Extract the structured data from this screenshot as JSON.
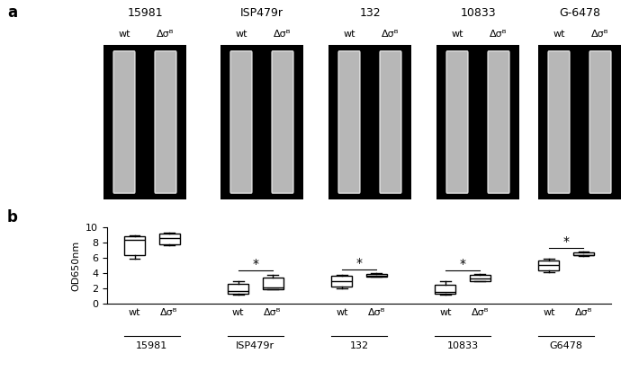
{
  "panel_a": {
    "label": "a",
    "images": [
      {
        "strain": "15981",
        "labels": [
          "wt",
          "Δσᴮ"
        ]
      },
      {
        "strain": "ISP479r",
        "labels": [
          "wt",
          "Δσᴮ"
        ]
      },
      {
        "strain": "132",
        "labels": [
          "wt",
          "Δσᴮ"
        ]
      },
      {
        "strain": "10833",
        "labels": [
          "wt",
          "Δσᴮ"
        ]
      },
      {
        "strain": "G-6478",
        "labels": [
          "wt",
          "Δσᴮ"
        ]
      }
    ]
  },
  "chart_data": {
    "type": "box",
    "panel_label": "b",
    "y_label": "OD650nm",
    "groups": [
      "15981",
      "ISP479r",
      "132",
      "10833",
      "G6478"
    ],
    "ylim": [
      0,
      10
    ],
    "yticks": [
      0,
      2,
      4,
      6,
      8,
      10
    ],
    "significance": [
      null,
      "*",
      "*",
      "*",
      "*"
    ],
    "series": [
      {
        "name": "wt",
        "color": "#ffffff",
        "values": [
          {
            "min": 5.9,
            "q1": 6.4,
            "median": 8.3,
            "q3": 8.8,
            "max": 8.9
          },
          {
            "min": 1.2,
            "q1": 1.3,
            "median": 1.7,
            "q3": 2.6,
            "max": 2.9
          },
          {
            "min": 2.0,
            "q1": 2.2,
            "median": 3.0,
            "q3": 3.6,
            "max": 3.8
          },
          {
            "min": 1.2,
            "q1": 1.3,
            "median": 1.5,
            "q3": 2.5,
            "max": 2.9
          },
          {
            "min": 4.1,
            "q1": 4.4,
            "median": 5.1,
            "q3": 5.7,
            "max": 5.9
          }
        ]
      },
      {
        "name": "Δσᴮ",
        "color": "#ffffff",
        "values": [
          {
            "min": 7.6,
            "q1": 7.8,
            "median": 8.6,
            "q3": 9.2,
            "max": 9.3
          },
          {
            "min": 1.9,
            "q1": 1.9,
            "median": 2.1,
            "q3": 3.4,
            "max": 3.8
          },
          {
            "min": 3.5,
            "q1": 3.5,
            "median": 3.7,
            "q3": 3.9,
            "max": 4.0
          },
          {
            "min": 2.9,
            "q1": 3.0,
            "median": 3.3,
            "q3": 3.8,
            "max": 3.9
          },
          {
            "min": 6.2,
            "q1": 6.3,
            "median": 6.4,
            "q3": 6.7,
            "max": 6.8
          }
        ]
      }
    ]
  }
}
